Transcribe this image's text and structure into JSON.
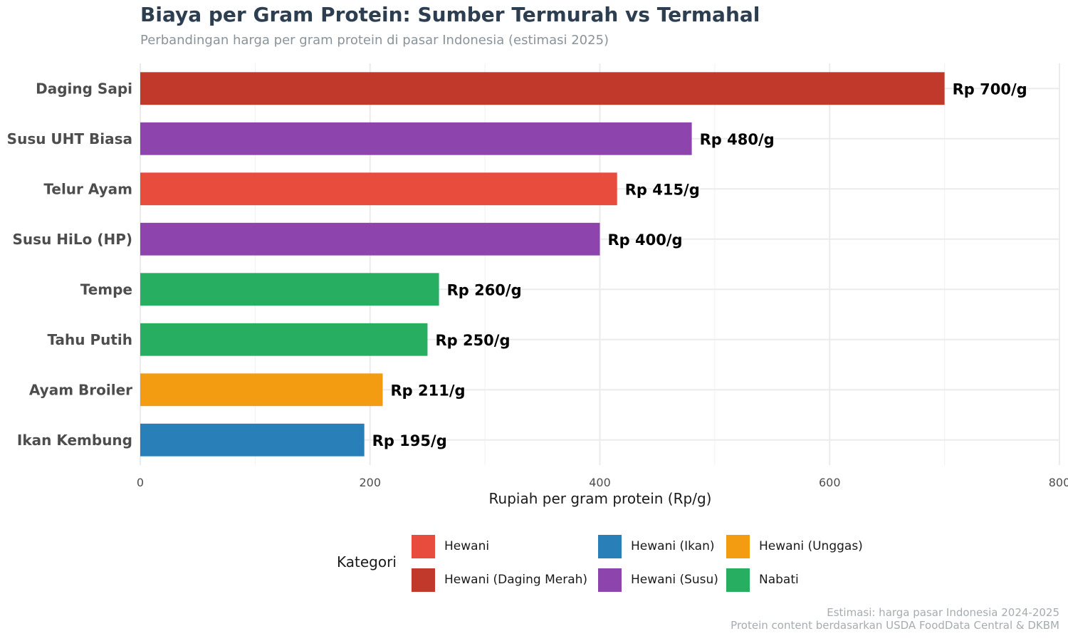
{
  "title": "Biaya per Gram Protein: Sumber Termurah vs Termahal",
  "subtitle": "Perbandingan harga per gram protein di pasar Indonesia (estimasi 2025)",
  "caption": {
    "line1": "Estimasi: harga pasar Indonesia 2024-2025",
    "line2": "Protein content berdasarkan USDA FoodData Central & DKBM"
  },
  "legend": {
    "title": "Kategori",
    "items": [
      {
        "label": "Hewani",
        "color": "#e74c3c"
      },
      {
        "label": "Hewani (Daging Merah)",
        "color": "#c0392b"
      },
      {
        "label": "Hewani (Ikan)",
        "color": "#2980b9"
      },
      {
        "label": "Hewani (Susu)",
        "color": "#8e44ad"
      },
      {
        "label": "Hewani (Unggas)",
        "color": "#f39c12"
      },
      {
        "label": "Nabati",
        "color": "#27ae60"
      }
    ]
  },
  "chart_data": {
    "type": "bar",
    "orientation": "horizontal",
    "title": "Biaya per Gram Protein: Sumber Termurah vs Termahal",
    "subtitle": "Perbandingan harga per gram protein di pasar Indonesia (estimasi 2025)",
    "xlabel": "Rupiah per gram protein (Rp/g)",
    "ylabel": "",
    "xlim": [
      0,
      800
    ],
    "xticks": [
      0,
      200,
      400,
      600,
      800
    ],
    "grid": true,
    "legend_position": "bottom",
    "categories": [
      "Daging Sapi",
      "Susu UHT Biasa",
      "Telur Ayam",
      "Susu HiLo (HP)",
      "Tempe",
      "Tahu Putih",
      "Ayam Broiler",
      "Ikan Kembung"
    ],
    "values": [
      700,
      480,
      415,
      400,
      260,
      250,
      211,
      195
    ],
    "value_labels": [
      "Rp 700/g",
      "Rp 480/g",
      "Rp 415/g",
      "Rp 400/g",
      "Rp 260/g",
      "Rp 250/g",
      "Rp 211/g",
      "Rp 195/g"
    ],
    "bar_categories": [
      "Hewani (Daging Merah)",
      "Hewani (Susu)",
      "Hewani",
      "Hewani (Susu)",
      "Nabati",
      "Nabati",
      "Hewani (Unggas)",
      "Hewani (Ikan)"
    ],
    "bar_colors": [
      "#c0392b",
      "#8e44ad",
      "#e74c3c",
      "#8e44ad",
      "#27ae60",
      "#27ae60",
      "#f39c12",
      "#2980b9"
    ]
  }
}
